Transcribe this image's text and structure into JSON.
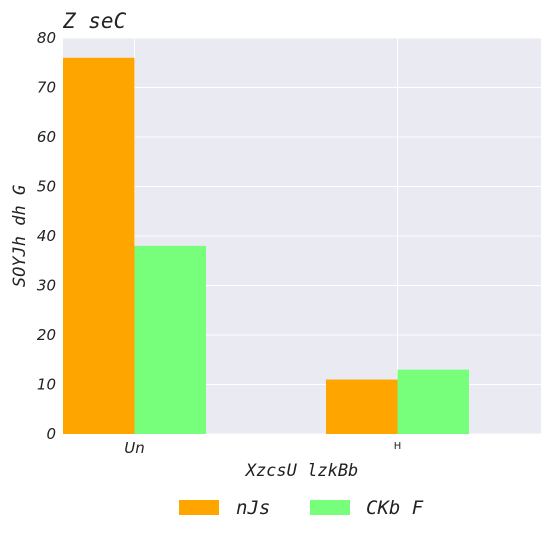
{
  "chart_data": {
    "type": "bar",
    "title": "Z seC",
    "xlabel": "XzcsU lzkBb",
    "ylabel": "SOYJh dh G",
    "categories": [
      "Un",
      "H"
    ],
    "series": [
      {
        "name": "nJs",
        "values": [
          76,
          11
        ],
        "color": "#FFA500"
      },
      {
        "name": "CKb F",
        "values": [
          38,
          13
        ],
        "color": "#77FF7C"
      }
    ],
    "ylim": [
      0,
      80
    ],
    "yticks": [
      "0",
      "10",
      "20",
      "30",
      "40",
      "50",
      "60",
      "70",
      "80"
    ],
    "grid": true,
    "legend": "bottom"
  }
}
